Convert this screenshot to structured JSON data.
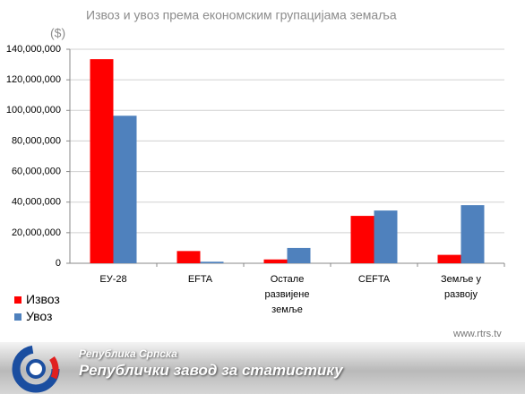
{
  "chart_data": {
    "type": "bar",
    "title": "Извоз и увоз према економским групацијама земаља",
    "y_label": "($)",
    "categories": [
      "ЕУ-28",
      "EFTA",
      "Остале развијене земље",
      "CEFTA",
      "Земље у развоју"
    ],
    "series": [
      {
        "name": "Извоз",
        "color": "#ff0000",
        "values": [
          133500000,
          8000000,
          2500000,
          31000000,
          5500000
        ]
      },
      {
        "name": "Увоз",
        "color": "#4f81bd",
        "values": [
          96500000,
          1000000,
          10000000,
          34500000,
          38000000
        ]
      }
    ],
    "ylim": [
      0,
      140000000
    ],
    "yticks": [
      0,
      {
        "value": 20000000,
        "label": "20,000,000"
      },
      {
        "value": 40000000,
        "label": "40,000,000"
      },
      {
        "value": 60000000,
        "label": "60,000,000"
      },
      {
        "value": 80000000,
        "label": "80,000,000"
      },
      {
        "value": 100000000,
        "label": "100,000,000"
      },
      {
        "value": 120000000,
        "label": "120,000,000"
      },
      {
        "value": 140000000,
        "label": "140,000,000"
      }
    ],
    "grid": true,
    "source": "www.rtrs.tv"
  },
  "footer": {
    "line1": "Република Српска",
    "line2": "Републички завод за статистику"
  }
}
